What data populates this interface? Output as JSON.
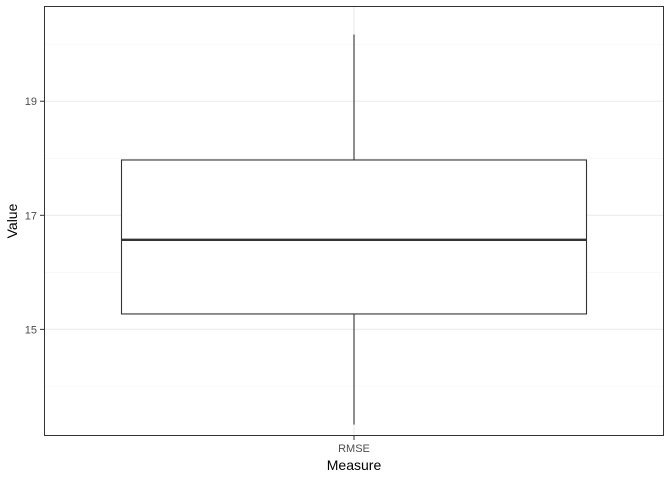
{
  "chart_data": {
    "type": "box",
    "title": "",
    "xlabel": "Measure",
    "ylabel": "Value",
    "categories": [
      "RMSE"
    ],
    "boxes": [
      {
        "category": "RMSE",
        "min": 13.33,
        "q1": 15.27,
        "median": 16.57,
        "q3": 17.97,
        "max": 20.17
      }
    ],
    "ylim": [
      13.13,
      20.67
    ],
    "y_major_ticks": [
      15,
      17,
      19
    ],
    "y_minor_ticks": [
      14,
      16,
      18,
      20
    ],
    "grid": true,
    "legend": "none",
    "theme": "bw"
  },
  "colors": {
    "background": "#ffffff",
    "panel_border": "#333333",
    "grid_major": "#ebebeb",
    "grid_minor": "#f4f4f4",
    "box_stroke": "#333333",
    "box_fill": "#ffffff",
    "tick_text": "#4d4d4d",
    "axis_title": "#000000"
  }
}
